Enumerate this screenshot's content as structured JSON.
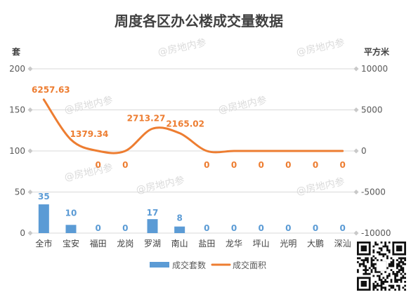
{
  "chart_data": {
    "type": "bar",
    "title": "周度各区办公楼成交量数据",
    "categories": [
      "全市",
      "宝安",
      "福田",
      "龙岗",
      "罗湖",
      "南山",
      "盐田",
      "龙华",
      "坪山",
      "光明",
      "大鹏",
      "深汕"
    ],
    "y_left": {
      "label": "套",
      "range": [
        0,
        200
      ],
      "ticks": [
        0,
        50,
        100,
        150,
        200
      ]
    },
    "y_right": {
      "label": "平方米",
      "range": [
        -10000,
        10000
      ],
      "ticks": [
        -10000,
        -5000,
        0,
        5000,
        10000
      ]
    },
    "series": [
      {
        "name": "成交套数",
        "type": "bar",
        "axis": "left",
        "color": "#5B9BD5",
        "values": [
          35,
          10,
          0,
          0,
          17,
          8,
          0,
          0,
          0,
          0,
          0,
          0
        ]
      },
      {
        "name": "成交面积",
        "type": "line",
        "axis": "right",
        "smooth": true,
        "color": "#ED7D31",
        "values": [
          6257.63,
          1379.34,
          0,
          0,
          2713.27,
          2165.02,
          0,
          0,
          0,
          0,
          0,
          0
        ]
      }
    ],
    "grid": true,
    "legend": "bottom",
    "data_labels": true
  },
  "watermark": "@房地内参"
}
